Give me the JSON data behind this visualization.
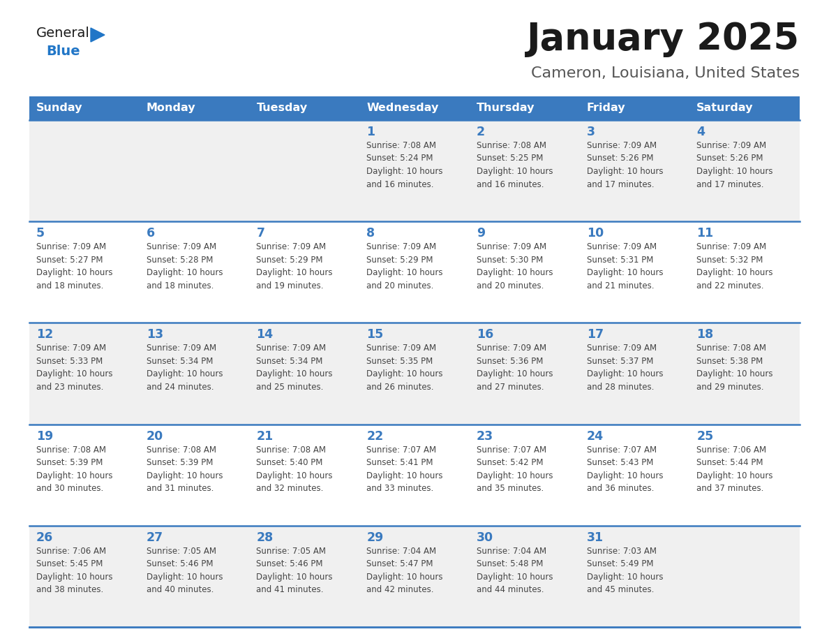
{
  "title": "January 2025",
  "subtitle": "Cameron, Louisiana, United States",
  "header_bg": "#3a7abf",
  "header_text_color": "#ffffff",
  "cell_bg_even": "#f0f0f0",
  "cell_bg_odd": "#ffffff",
  "day_number_color": "#3a7abf",
  "cell_text_color": "#444444",
  "separator_color": "#3a7abf",
  "days_of_week": [
    "Sunday",
    "Monday",
    "Tuesday",
    "Wednesday",
    "Thursday",
    "Friday",
    "Saturday"
  ],
  "calendar": [
    [
      {
        "day": null,
        "text": ""
      },
      {
        "day": null,
        "text": ""
      },
      {
        "day": null,
        "text": ""
      },
      {
        "day": 1,
        "text": "Sunrise: 7:08 AM\nSunset: 5:24 PM\nDaylight: 10 hours\nand 16 minutes."
      },
      {
        "day": 2,
        "text": "Sunrise: 7:08 AM\nSunset: 5:25 PM\nDaylight: 10 hours\nand 16 minutes."
      },
      {
        "day": 3,
        "text": "Sunrise: 7:09 AM\nSunset: 5:26 PM\nDaylight: 10 hours\nand 17 minutes."
      },
      {
        "day": 4,
        "text": "Sunrise: 7:09 AM\nSunset: 5:26 PM\nDaylight: 10 hours\nand 17 minutes."
      }
    ],
    [
      {
        "day": 5,
        "text": "Sunrise: 7:09 AM\nSunset: 5:27 PM\nDaylight: 10 hours\nand 18 minutes."
      },
      {
        "day": 6,
        "text": "Sunrise: 7:09 AM\nSunset: 5:28 PM\nDaylight: 10 hours\nand 18 minutes."
      },
      {
        "day": 7,
        "text": "Sunrise: 7:09 AM\nSunset: 5:29 PM\nDaylight: 10 hours\nand 19 minutes."
      },
      {
        "day": 8,
        "text": "Sunrise: 7:09 AM\nSunset: 5:29 PM\nDaylight: 10 hours\nand 20 minutes."
      },
      {
        "day": 9,
        "text": "Sunrise: 7:09 AM\nSunset: 5:30 PM\nDaylight: 10 hours\nand 20 minutes."
      },
      {
        "day": 10,
        "text": "Sunrise: 7:09 AM\nSunset: 5:31 PM\nDaylight: 10 hours\nand 21 minutes."
      },
      {
        "day": 11,
        "text": "Sunrise: 7:09 AM\nSunset: 5:32 PM\nDaylight: 10 hours\nand 22 minutes."
      }
    ],
    [
      {
        "day": 12,
        "text": "Sunrise: 7:09 AM\nSunset: 5:33 PM\nDaylight: 10 hours\nand 23 minutes."
      },
      {
        "day": 13,
        "text": "Sunrise: 7:09 AM\nSunset: 5:34 PM\nDaylight: 10 hours\nand 24 minutes."
      },
      {
        "day": 14,
        "text": "Sunrise: 7:09 AM\nSunset: 5:34 PM\nDaylight: 10 hours\nand 25 minutes."
      },
      {
        "day": 15,
        "text": "Sunrise: 7:09 AM\nSunset: 5:35 PM\nDaylight: 10 hours\nand 26 minutes."
      },
      {
        "day": 16,
        "text": "Sunrise: 7:09 AM\nSunset: 5:36 PM\nDaylight: 10 hours\nand 27 minutes."
      },
      {
        "day": 17,
        "text": "Sunrise: 7:09 AM\nSunset: 5:37 PM\nDaylight: 10 hours\nand 28 minutes."
      },
      {
        "day": 18,
        "text": "Sunrise: 7:08 AM\nSunset: 5:38 PM\nDaylight: 10 hours\nand 29 minutes."
      }
    ],
    [
      {
        "day": 19,
        "text": "Sunrise: 7:08 AM\nSunset: 5:39 PM\nDaylight: 10 hours\nand 30 minutes."
      },
      {
        "day": 20,
        "text": "Sunrise: 7:08 AM\nSunset: 5:39 PM\nDaylight: 10 hours\nand 31 minutes."
      },
      {
        "day": 21,
        "text": "Sunrise: 7:08 AM\nSunset: 5:40 PM\nDaylight: 10 hours\nand 32 minutes."
      },
      {
        "day": 22,
        "text": "Sunrise: 7:07 AM\nSunset: 5:41 PM\nDaylight: 10 hours\nand 33 minutes."
      },
      {
        "day": 23,
        "text": "Sunrise: 7:07 AM\nSunset: 5:42 PM\nDaylight: 10 hours\nand 35 minutes."
      },
      {
        "day": 24,
        "text": "Sunrise: 7:07 AM\nSunset: 5:43 PM\nDaylight: 10 hours\nand 36 minutes."
      },
      {
        "day": 25,
        "text": "Sunrise: 7:06 AM\nSunset: 5:44 PM\nDaylight: 10 hours\nand 37 minutes."
      }
    ],
    [
      {
        "day": 26,
        "text": "Sunrise: 7:06 AM\nSunset: 5:45 PM\nDaylight: 10 hours\nand 38 minutes."
      },
      {
        "day": 27,
        "text": "Sunrise: 7:05 AM\nSunset: 5:46 PM\nDaylight: 10 hours\nand 40 minutes."
      },
      {
        "day": 28,
        "text": "Sunrise: 7:05 AM\nSunset: 5:46 PM\nDaylight: 10 hours\nand 41 minutes."
      },
      {
        "day": 29,
        "text": "Sunrise: 7:04 AM\nSunset: 5:47 PM\nDaylight: 10 hours\nand 42 minutes."
      },
      {
        "day": 30,
        "text": "Sunrise: 7:04 AM\nSunset: 5:48 PM\nDaylight: 10 hours\nand 44 minutes."
      },
      {
        "day": 31,
        "text": "Sunrise: 7:03 AM\nSunset: 5:49 PM\nDaylight: 10 hours\nand 45 minutes."
      },
      {
        "day": null,
        "text": ""
      }
    ]
  ],
  "logo_color_general": "#1a1a1a",
  "logo_color_blue": "#2176c7",
  "logo_triangle_color": "#2176c7"
}
